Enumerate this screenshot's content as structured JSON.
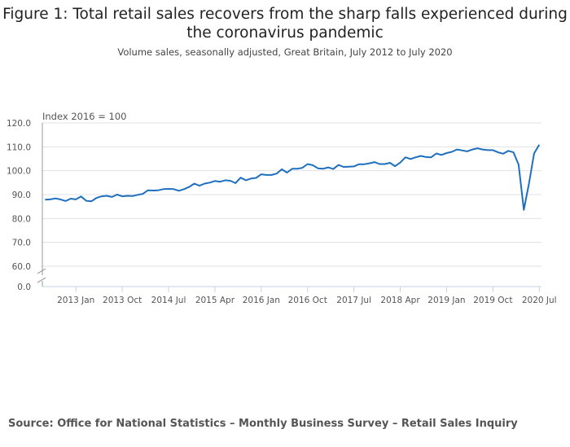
{
  "chart_data": {
    "type": "line",
    "title": "Figure 1: Total retail sales recovers from the sharp falls experienced during the coronavirus pandemic",
    "subtitle": "Volume sales, seasonally adjusted, Great Britain, July 2012 to July 2020",
    "ylabel": "Index 2016 = 100",
    "xlabel": "",
    "ylim": [
      60,
      120
    ],
    "y_axis_break": true,
    "y_ticks": [
      "120.0",
      "110.0",
      "100.0",
      "90.0",
      "80.0",
      "70.0",
      "60.0",
      "0.0"
    ],
    "y_tick_values": [
      120,
      110,
      100,
      90,
      80,
      70,
      60,
      0
    ],
    "x_ticks": [
      "2013 Jan",
      "2013 Oct",
      "2014 Jul",
      "2015 Apr",
      "2016 Jan",
      "2016 Oct",
      "2017 Jul",
      "2018 Apr",
      "2019 Jan",
      "2019 Oct",
      "2020 Jul"
    ],
    "x_tick_month_index": [
      6,
      15,
      24,
      33,
      42,
      51,
      60,
      69,
      78,
      87,
      96
    ],
    "x_start": "2012 Jul",
    "x_end": "2020 Jul",
    "grid": true,
    "series": [
      {
        "name": "Total retail sales volume index",
        "color": "#206095",
        "values": [
          87.9,
          88.0,
          88.4,
          88.0,
          87.3,
          88.3,
          88.0,
          89.2,
          87.4,
          87.2,
          88.6,
          89.3,
          89.5,
          89.0,
          90.0,
          89.3,
          89.5,
          89.4,
          89.9,
          90.3,
          91.8,
          91.7,
          91.8,
          92.3,
          92.4,
          92.3,
          91.6,
          92.3,
          93.2,
          94.6,
          93.7,
          94.6,
          95.0,
          95.7,
          95.4,
          96.0,
          95.8,
          94.8,
          97.1,
          96.0,
          96.7,
          97.0,
          98.5,
          98.2,
          98.2,
          98.8,
          100.6,
          99.2,
          100.8,
          100.8,
          101.2,
          102.8,
          102.3,
          101.0,
          100.8,
          101.4,
          100.7,
          102.4,
          101.6,
          101.7,
          101.8,
          102.7,
          102.7,
          103.1,
          103.6,
          102.8,
          102.8,
          103.3,
          101.9,
          103.4,
          105.6,
          104.9,
          105.6,
          106.2,
          105.7,
          105.6,
          107.2,
          106.6,
          107.4,
          107.9,
          108.9,
          108.5,
          108.1,
          108.9,
          109.4,
          108.9,
          108.6,
          108.6,
          107.7,
          107.1,
          108.3,
          107.7,
          102.5,
          83.6,
          94.6,
          107.2,
          110.9
        ]
      }
    ]
  },
  "source": "Source: Office for National Statistics – Monthly Business Survey – Retail Sales Inquiry"
}
